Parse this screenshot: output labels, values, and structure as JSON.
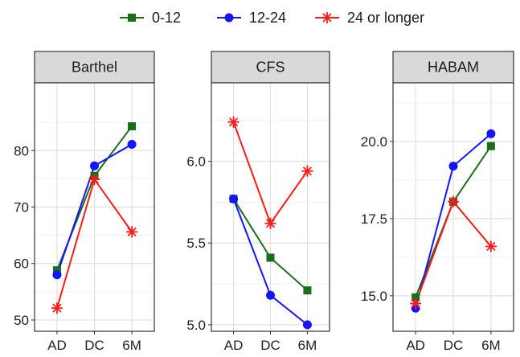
{
  "legend": {
    "items": [
      {
        "label": "0-12",
        "color": "#1a6e1a",
        "marker": "square"
      },
      {
        "label": "12-24",
        "color": "#1414ff",
        "marker": "circle"
      },
      {
        "label": "24 or longer",
        "color": "#ff1a1a",
        "marker": "asterisk"
      }
    ]
  },
  "chart_data": [
    {
      "type": "line",
      "title": "Barthel",
      "categories": [
        "AD",
        "DC",
        "6M"
      ],
      "ylim": [
        48,
        92
      ],
      "yticks": [
        50,
        60,
        70,
        80
      ],
      "grid": true,
      "series": [
        {
          "name": "0-12",
          "values": [
            58.8,
            75.5,
            84.3
          ]
        },
        {
          "name": "12-24",
          "values": [
            58.0,
            77.3,
            81.1
          ]
        },
        {
          "name": "24 or longer",
          "values": [
            52.1,
            74.9,
            65.6
          ]
        }
      ]
    },
    {
      "type": "line",
      "title": "CFS",
      "categories": [
        "AD",
        "DC",
        "6M"
      ],
      "ylim": [
        4.96,
        6.48
      ],
      "yticks": [
        5.0,
        5.5,
        6.0
      ],
      "tick_labels": [
        "5.0",
        "5.5",
        "6.0"
      ],
      "grid": true,
      "series": [
        {
          "name": "0-12",
          "values": [
            5.77,
            5.41,
            5.21
          ]
        },
        {
          "name": "12-24",
          "values": [
            5.77,
            5.18,
            5.0
          ]
        },
        {
          "name": "24 or longer",
          "values": [
            6.24,
            5.62,
            5.94
          ]
        }
      ]
    },
    {
      "type": "line",
      "title": "HABAM",
      "categories": [
        "AD",
        "DC",
        "6M"
      ],
      "ylim": [
        13.85,
        21.9
      ],
      "yticks": [
        15.0,
        17.5,
        20.0
      ],
      "tick_labels": [
        "15.0",
        "17.5",
        "20.0"
      ],
      "grid": true,
      "series": [
        {
          "name": "0-12",
          "values": [
            14.95,
            18.05,
            19.85
          ]
        },
        {
          "name": "12-24",
          "values": [
            14.6,
            19.2,
            20.25
          ]
        },
        {
          "name": "24 or longer",
          "values": [
            14.75,
            18.05,
            16.6
          ]
        }
      ]
    }
  ]
}
